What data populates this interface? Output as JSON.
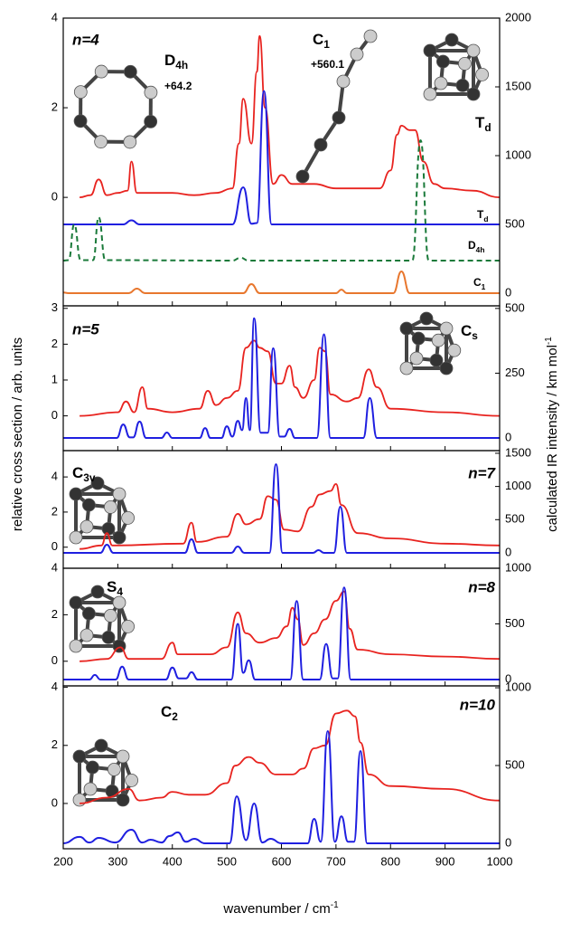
{
  "x_axis": {
    "label": "wavenumber / cm",
    "label_sup": "-1",
    "xlim": [
      200,
      1000
    ],
    "xticks": [
      200,
      300,
      400,
      500,
      600,
      700,
      800,
      900,
      1000
    ]
  },
  "y_label": "relative cross section / arb. units",
  "y2_label": {
    "text": "calculated IR intensity / km mol",
    "sup": "-1"
  },
  "chart_data": [
    {
      "type": "line",
      "label": "n=4",
      "ylim": [
        -2.42,
        4
      ],
      "yticks": [
        0,
        2,
        4
      ],
      "y2lim": [
        -92,
        2000
      ],
      "y2ticks": [
        0,
        500,
        1000,
        1500,
        2000
      ],
      "annotations": [
        {
          "text": "D",
          "sub": "4h",
          "color": "#1a7a3a"
        },
        {
          "text": "+64.2",
          "color": "#1a7a3a"
        },
        {
          "text": "C",
          "sub": "1",
          "color": "#e8772e"
        },
        {
          "text": "+560.1",
          "color": "#e8772e"
        },
        {
          "text": "T",
          "sub": "d",
          "color": "#1f1fe0"
        }
      ],
      "series": [
        {
          "color": "#e8231f",
          "x": [
            230,
            250,
            265,
            280,
            300,
            318,
            325,
            335,
            360,
            400,
            440,
            480,
            510,
            522,
            530,
            545,
            555,
            560,
            570,
            585,
            600,
            620,
            660,
            700,
            740,
            780,
            800,
            812,
            820,
            835,
            845,
            860,
            880,
            900,
            950,
            1000
          ],
          "values": [
            0,
            0.05,
            0.4,
            0.05,
            0.1,
            0.15,
            0.8,
            0.1,
            0.1,
            0.1,
            0.05,
            0.1,
            0.2,
            1.2,
            2.2,
            1.2,
            2.8,
            3.6,
            2.0,
            0.3,
            0.5,
            0.3,
            0.3,
            0.2,
            0.2,
            0.2,
            0.6,
            1.4,
            1.6,
            1.5,
            1.5,
            0.8,
            0.3,
            0.2,
            0.15,
            0
          ]
        },
        {
          "label": {
            "text": "T",
            "sub": "d"
          },
          "color": "#1f1fe0",
          "axis": "y2",
          "x": [
            200,
            310,
            325,
            340,
            510,
            530,
            545,
            555,
            568,
            582,
            1000
          ],
          "values": [
            500,
            500,
            530,
            500,
            500,
            770,
            505,
            510,
            1470,
            500,
            500
          ]
        },
        {
          "label": {
            "text": "D",
            "sub": "4h"
          },
          "color": "#1a7a3a",
          "dash": true,
          "axis": "y2",
          "x": [
            200,
            210,
            220,
            232,
            255,
            265,
            277,
            510,
            525,
            540,
            840,
            855,
            870,
            1000
          ],
          "values": [
            237,
            240,
            500,
            240,
            240,
            553,
            240,
            237,
            257,
            237,
            237,
            1112,
            237,
            237
          ]
        },
        {
          "label": {
            "text": "C",
            "sub": "1"
          },
          "color": "#e8772e",
          "axis": "y2",
          "x": [
            200,
            210,
            320,
            335,
            350,
            530,
            545,
            560,
            700,
            710,
            720,
            805,
            820,
            835,
            1000
          ],
          "values": [
            5,
            0,
            0,
            33,
            0,
            0,
            66,
            0,
            0,
            26,
            0,
            0,
            158,
            0,
            0
          ]
        }
      ]
    },
    {
      "type": "line",
      "label": "n=5",
      "ylim": [
        -0.97,
        3.07
      ],
      "yticks": [
        0,
        1,
        2,
        3
      ],
      "y2lim": [
        -49,
        510
      ],
      "y2ticks": [
        0,
        250,
        500
      ],
      "annotations": [
        {
          "text": "C",
          "sub": "s",
          "color": "#1f1fe0"
        }
      ],
      "series": [
        {
          "color": "#e8231f",
          "x": [
            230,
            300,
            315,
            330,
            345,
            355,
            400,
            450,
            465,
            480,
            500,
            520,
            535,
            550,
            560,
            575,
            590,
            600,
            615,
            625,
            640,
            660,
            670,
            680,
            690,
            720,
            740,
            760,
            775,
            800,
            900,
            1000
          ],
          "values": [
            0,
            0.1,
            0.4,
            0.1,
            0.8,
            0.2,
            0.1,
            0.2,
            0.7,
            0.3,
            0.5,
            0.7,
            1.9,
            2.1,
            1.9,
            1.8,
            0.9,
            0.9,
            1.4,
            0.8,
            0.5,
            1.0,
            1.9,
            1.8,
            0.6,
            0.4,
            0.5,
            1.3,
            0.8,
            0.2,
            0.1,
            0
          ]
        },
        {
          "color": "#1f1fe0",
          "axis": "y2",
          "x": [
            200,
            298,
            310,
            322,
            328,
            340,
            352,
            380,
            390,
            400,
            450,
            460,
            470,
            490,
            500,
            510,
            520,
            528,
            535,
            542,
            550,
            562,
            575,
            585,
            597,
            605,
            615,
            625,
            665,
            678,
            690,
            750,
            762,
            775,
            1000
          ],
          "values": [
            0,
            0,
            52,
            2,
            2,
            63,
            0,
            0,
            21,
            0,
            0,
            38,
            0,
            0,
            45,
            5,
            66,
            30,
            154,
            30,
            462,
            20,
            20,
            346,
            5,
            5,
            35,
            0,
            0,
            400,
            0,
            0,
            154,
            0,
            0
          ]
        }
      ]
    },
    {
      "type": "line",
      "label": "n=7",
      "ylim": [
        -1.2,
        5.5
      ],
      "yticks": [
        0,
        2,
        4
      ],
      "y2lim": [
        -232,
        1540
      ],
      "y2ticks": [
        0,
        500,
        1000,
        1500
      ],
      "annotations": [
        {
          "text": "C",
          "sub": "3v",
          "color": "#1f1fe0"
        }
      ],
      "series": [
        {
          "color": "#e8231f",
          "x": [
            230,
            270,
            280,
            290,
            420,
            435,
            445,
            500,
            520,
            535,
            560,
            575,
            590,
            605,
            630,
            655,
            670,
            690,
            700,
            710,
            740,
            800,
            900,
            1000
          ],
          "values": [
            -0.1,
            0.1,
            0.8,
            0.1,
            0.2,
            1.4,
            0.3,
            0.6,
            1.9,
            1.3,
            1.6,
            2.9,
            2.7,
            1.0,
            0.9,
            2.3,
            3.0,
            3.2,
            3.6,
            2.4,
            0.8,
            0.5,
            0.2,
            0.1
          ]
        },
        {
          "color": "#1f1fe0",
          "axis": "y2",
          "x": [
            200,
            268,
            280,
            292,
            423,
            435,
            447,
            508,
            520,
            532,
            578,
            590,
            602,
            658,
            668,
            678,
            696,
            708,
            720,
            1000
          ],
          "values": [
            0,
            0,
            123,
            0,
            0,
            204,
            0,
            0,
            95,
            0,
            0,
            1335,
            0,
            0,
            40,
            0,
            0,
            695,
            0,
            0
          ]
        }
      ]
    },
    {
      "type": "line",
      "label": "n=8",
      "ylim": [
        -1.06,
        4
      ],
      "yticks": [
        0,
        2,
        4
      ],
      "y2lim": [
        -57,
        1000
      ],
      "y2ticks": [
        0,
        500,
        1000
      ],
      "annotations": [
        {
          "text": "S",
          "sub": "4",
          "color": "#1f1fe0"
        }
      ],
      "series": [
        {
          "color": "#e8231f",
          "x": [
            230,
            280,
            305,
            320,
            380,
            400,
            410,
            470,
            500,
            520,
            535,
            560,
            590,
            610,
            620,
            630,
            640,
            660,
            680,
            700,
            715,
            725,
            740,
            800,
            900,
            1000
          ],
          "values": [
            0,
            0.1,
            0.6,
            0.1,
            0.1,
            0.8,
            0.3,
            0.3,
            0.6,
            2.1,
            1.2,
            0.8,
            1.0,
            1.5,
            2.3,
            1.8,
            0.7,
            1.2,
            1.8,
            2.6,
            3.0,
            1.4,
            0.5,
            0.3,
            0.2,
            0.1
          ]
        },
        {
          "color": "#1f1fe0",
          "axis": "y2",
          "x": [
            200,
            248,
            258,
            268,
            296,
            308,
            320,
            388,
            400,
            412,
            425,
            435,
            447,
            508,
            520,
            530,
            540,
            552,
            616,
            628,
            640,
            670,
            682,
            694,
            703,
            715,
            727,
            1000
          ],
          "values": [
            0,
            0,
            41,
            0,
            0,
            115,
            0,
            0,
            107,
            10,
            10,
            66,
            0,
            0,
            500,
            60,
            172,
            0,
            0,
            705,
            0,
            0,
            320,
            10,
            10,
            828,
            0,
            0
          ]
        }
      ]
    },
    {
      "type": "line",
      "label": "n=10",
      "ylim": [
        -1.56,
        4.05
      ],
      "yticks": [
        0,
        2,
        4
      ],
      "y2lim": [
        -35,
        1012
      ],
      "y2ticks": [
        0,
        500,
        1000
      ],
      "annotations": [
        {
          "text": "C",
          "sub": "2",
          "color": "#1f1fe0"
        }
      ],
      "series": [
        {
          "color": "#e8231f",
          "x": [
            230,
            280,
            320,
            340,
            380,
            400,
            430,
            460,
            500,
            515,
            540,
            560,
            590,
            620,
            640,
            660,
            680,
            700,
            720,
            735,
            745,
            760,
            800,
            900,
            1000
          ],
          "values": [
            0,
            0.2,
            0.5,
            0.1,
            0.2,
            0.4,
            0.3,
            0.3,
            0.7,
            1.3,
            1.6,
            1.4,
            1.0,
            1.0,
            1.2,
            1.9,
            2.0,
            3.1,
            3.2,
            3.0,
            2.1,
            1.0,
            0.6,
            0.5,
            0.1
          ]
        },
        {
          "color": "#1f1fe0",
          "axis": "y2",
          "x": [
            200,
            230,
            248,
            265,
            295,
            325,
            345,
            360,
            380,
            395,
            410,
            425,
            440,
            460,
            505,
            518,
            535,
            550,
            565,
            580,
            600,
            648,
            660,
            672,
            685,
            698,
            710,
            722,
            733,
            745,
            757,
            1000
          ],
          "values": [
            0,
            41,
            5,
            35,
            5,
            87,
            5,
            23,
            5,
            47,
            70,
            10,
            29,
            0,
            0,
            302,
            20,
            256,
            5,
            29,
            0,
            0,
            157,
            10,
            721,
            10,
            174,
            10,
            10,
            593,
            0,
            0
          ]
        }
      ]
    }
  ]
}
